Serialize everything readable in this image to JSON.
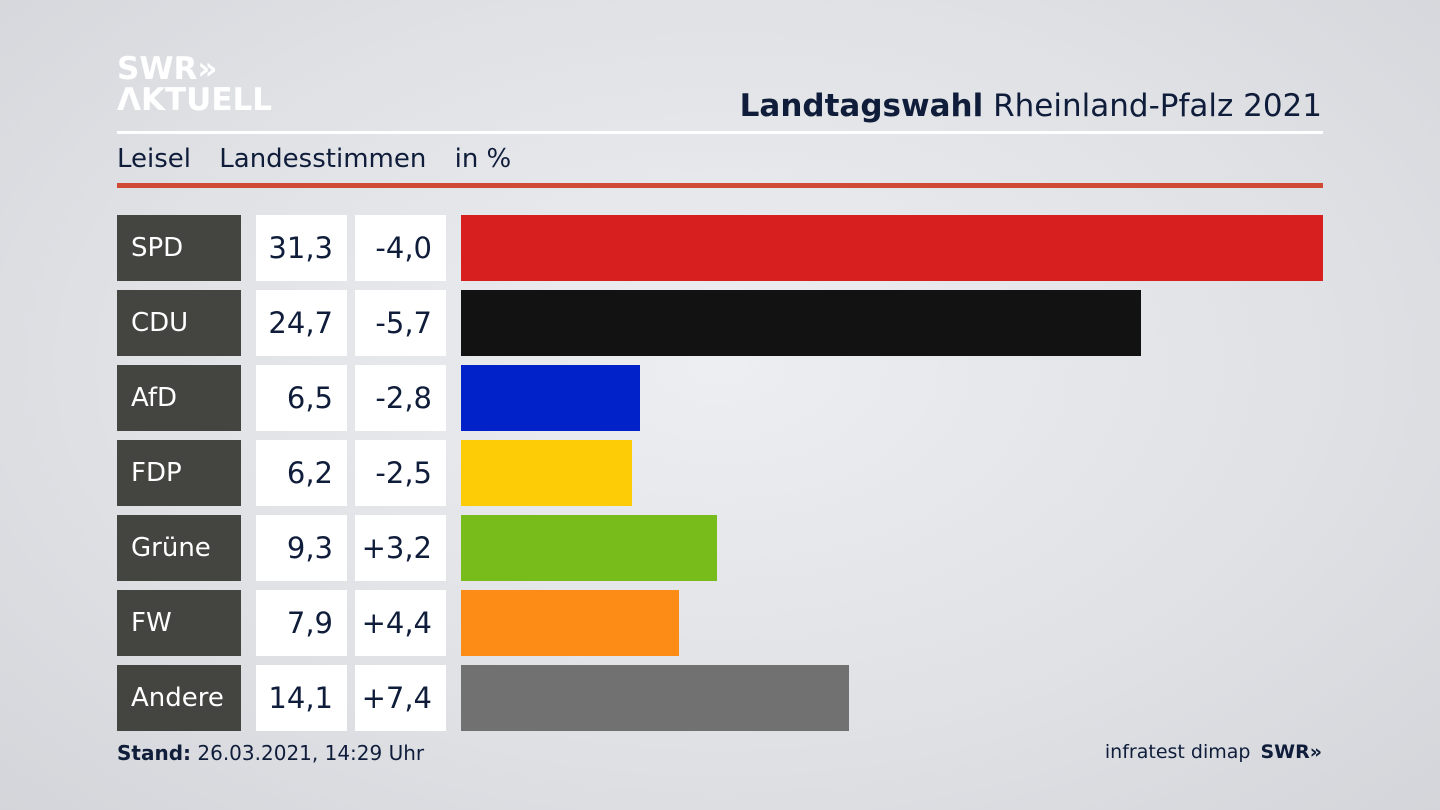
{
  "logo": {
    "line1": "SWR»",
    "line2": "ΛKTUELL"
  },
  "header": {
    "title_bold": "Landtagswahl",
    "title_rest": "Rheinland-Pfalz 2021"
  },
  "subtitle": {
    "place": "Leisel",
    "measure": "Landesstimmen",
    "unit": "in %"
  },
  "footer": {
    "stand_label": "Stand:",
    "stand_value": "26.03.2021, 14:29 Uhr",
    "source": "infratest dimap",
    "brand": "SWR»"
  },
  "chart_data": {
    "type": "bar",
    "title": "Landtagswahl Rheinland-Pfalz 2021 – Leisel Landesstimmen in %",
    "categories": [
      "SPD",
      "CDU",
      "AfD",
      "FDP",
      "Grüne",
      "FW",
      "Andere"
    ],
    "values": [
      31.3,
      24.7,
      6.5,
      6.2,
      9.3,
      7.9,
      14.1
    ],
    "value_labels": [
      "31,3",
      "24,7",
      "6,5",
      "6,2",
      "9,3",
      "7,9",
      "14,1"
    ],
    "diff_labels": [
      "-4,0",
      "-5,7",
      "-2,8",
      "-2,5",
      "+3,2",
      "+4,4",
      "+7,4"
    ],
    "diffs": [
      -4.0,
      -5.7,
      -2.8,
      -2.5,
      3.2,
      4.4,
      7.4
    ],
    "colors": [
      "#d71f20",
      "#121212",
      "#0022c8",
      "#fecc07",
      "#78bc1c",
      "#fd8c16",
      "#717171"
    ],
    "xlim": [
      0,
      31.3
    ]
  }
}
